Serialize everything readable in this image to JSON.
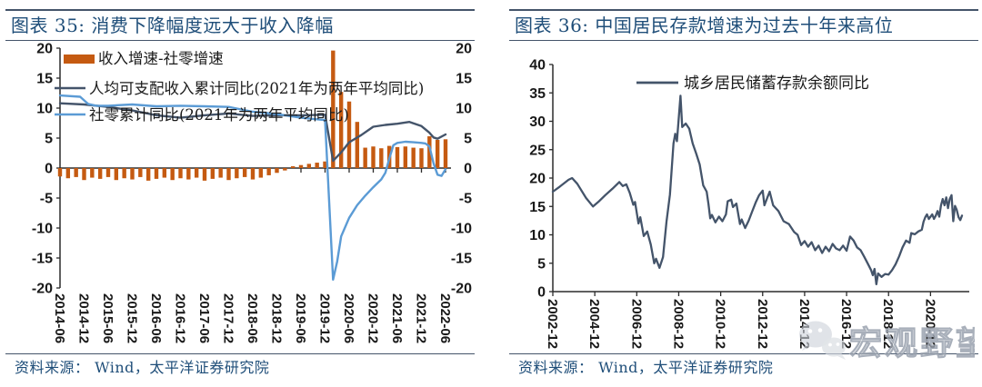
{
  "panels": [
    {
      "title": "图表 35:  消费下降幅度远大于收入降幅",
      "source": "资料来源：  Wind，太平洋证券研究院"
    },
    {
      "title": "图表 36:  中国居民存款增速为过去十年来高位",
      "source": "资料来源：  Wind，太平洋证券研究院"
    }
  ],
  "watermark": {
    "text": "宏观野望",
    "icon": "wechat-icon"
  },
  "colors": {
    "bar_orange": "#C55A11",
    "navy": "#44546A",
    "light_blue": "#5B9BD5",
    "title_blue": "#1F4E79",
    "rule": "#44546A",
    "axis": "#2b2b2b",
    "watermark_gray": "#9aa2ae"
  },
  "chart_data": [
    {
      "type": "bar",
      "subtype": "combo-bar-line-dual-axis",
      "title": "图表 35:  消费下降幅度远大于收入降幅",
      "ylim": [
        -20,
        20
      ],
      "ytick_step": 5,
      "dual_axis_labels": true,
      "x_domain_months": [
        0,
        96
      ],
      "x_tick_months": [
        0,
        6,
        12,
        18,
        24,
        30,
        36,
        42,
        48,
        54,
        60,
        66,
        72,
        78,
        84,
        90,
        96
      ],
      "x_tick_labels": [
        "2014-06",
        "2014-12",
        "2015-06",
        "2015-12",
        "2016-06",
        "2016-12",
        "2017-06",
        "2017-12",
        "2018-06",
        "2018-12",
        "2019-06",
        "2019-12",
        "2020-06",
        "2020-12",
        "2021-06",
        "2021-12",
        "2022-06"
      ],
      "series": [
        {
          "name": "收入增速-社零增速",
          "type": "bar",
          "color_key": "bar_orange",
          "points": [
            [
              0,
              -1.4
            ],
            [
              2,
              -1.7
            ],
            [
              4,
              -1.5
            ],
            [
              6,
              -2.0
            ],
            [
              8,
              -1.6
            ],
            [
              10,
              -1.8
            ],
            [
              12,
              -1.5
            ],
            [
              14,
              -2.0
            ],
            [
              16,
              -1.7
            ],
            [
              18,
              -1.9
            ],
            [
              20,
              -1.5
            ],
            [
              22,
              -2.1
            ],
            [
              24,
              -1.8
            ],
            [
              26,
              -1.6
            ],
            [
              28,
              -2.0
            ],
            [
              30,
              -1.7
            ],
            [
              32,
              -1.9
            ],
            [
              34,
              -1.6
            ],
            [
              36,
              -2.1
            ],
            [
              38,
              -1.8
            ],
            [
              40,
              -1.6
            ],
            [
              42,
              -2.0
            ],
            [
              44,
              -1.7
            ],
            [
              46,
              -1.5
            ],
            [
              48,
              -1.9
            ],
            [
              50,
              -1.6
            ],
            [
              52,
              -1.2
            ],
            [
              54,
              -0.8
            ],
            [
              56,
              -0.4
            ],
            [
              58,
              0.3
            ],
            [
              60,
              0.5
            ],
            [
              62,
              0.7
            ],
            [
              64,
              0.9
            ],
            [
              66,
              1.1
            ],
            [
              68,
              19.6
            ],
            [
              70,
              12.7
            ],
            [
              72,
              11.1
            ],
            [
              74,
              7.7
            ],
            [
              76,
              3.4
            ],
            [
              78,
              3.6
            ],
            [
              80,
              3.3
            ],
            [
              82,
              3.7
            ],
            [
              84,
              3.5
            ],
            [
              86,
              3.6
            ],
            [
              88,
              3.4
            ],
            [
              90,
              3.3
            ],
            [
              92,
              5.3
            ],
            [
              94,
              4.7
            ],
            [
              96,
              4.8
            ]
          ]
        },
        {
          "name": "人均可支配收入累计同比(2021年为两年平均同比)",
          "type": "line",
          "color_key": "navy",
          "points": [
            [
              0,
              10.8
            ],
            [
              6,
              10.6
            ],
            [
              12,
              10.2
            ],
            [
              18,
              9.6
            ],
            [
              24,
              8.8
            ],
            [
              30,
              8.4
            ],
            [
              36,
              8.8
            ],
            [
              42,
              9.1
            ],
            [
              48,
              8.7
            ],
            [
              54,
              8.8
            ],
            [
              60,
              8.8
            ],
            [
              66,
              8.9
            ],
            [
              68,
              1.2
            ],
            [
              70,
              2.6
            ],
            [
              72,
              4.3
            ],
            [
              75,
              5.5
            ],
            [
              78,
              6.9
            ],
            [
              81,
              7.2
            ],
            [
              84,
              7.4
            ],
            [
              87,
              7.7
            ],
            [
              90,
              7.0
            ],
            [
              92,
              5.9
            ],
            [
              93,
              5.1
            ],
            [
              94,
              4.9
            ],
            [
              96,
              5.6
            ]
          ]
        },
        {
          "name": "社零累计同比(2021年为两年平均同比)",
          "type": "line",
          "color_key": "light_blue",
          "points": [
            [
              0,
              12.1
            ],
            [
              5,
              11.9
            ],
            [
              7,
              10.7
            ],
            [
              9,
              10.4
            ],
            [
              12,
              10.4
            ],
            [
              18,
              10.6
            ],
            [
              24,
              10.3
            ],
            [
              30,
              10.4
            ],
            [
              36,
              10.3
            ],
            [
              42,
              10.2
            ],
            [
              48,
              9.4
            ],
            [
              54,
              9.0
            ],
            [
              60,
              8.4
            ],
            [
              66,
              8.0
            ],
            [
              68,
              -18.6
            ],
            [
              69,
              -15.6
            ],
            [
              70,
              -11.4
            ],
            [
              72,
              -8.3
            ],
            [
              74,
              -6.2
            ],
            [
              76,
              -4.6
            ],
            [
              78,
              -3.2
            ],
            [
              80,
              -1.9
            ],
            [
              81,
              -0.8
            ],
            [
              82,
              1.6
            ],
            [
              83,
              3.8
            ],
            [
              84,
              4.2
            ],
            [
              86,
              4.4
            ],
            [
              88,
              4.3
            ],
            [
              90,
              4.2
            ],
            [
              91,
              4.1
            ],
            [
              92,
              3.6
            ],
            [
              93,
              0.8
            ],
            [
              94,
              -1.1
            ],
            [
              95,
              -1.3
            ],
            [
              96,
              -0.2
            ]
          ]
        }
      ]
    },
    {
      "type": "line",
      "title": "图表 36:  中国居民存款增速为过去十年来高位",
      "legend": "城乡居民储蓄存款余额同比",
      "ylim": [
        0,
        40
      ],
      "ytick_step": 5,
      "x_domain_months": [
        0,
        234
      ],
      "x_tick_months": [
        0,
        24,
        48,
        72,
        96,
        120,
        144,
        168,
        192,
        216
      ],
      "x_tick_labels": [
        "2002-12",
        "2004-12",
        "2006-12",
        "2008-12",
        "2010-12",
        "2012-12",
        "2014-12",
        "2016-12",
        "2018-12",
        "2020-12"
      ],
      "series": [
        {
          "name": "城乡居民储蓄存款余额同比",
          "type": "line",
          "color_key": "navy",
          "points": [
            [
              0,
              17.6
            ],
            [
              4,
              18.5
            ],
            [
              9,
              19.7
            ],
            [
              11,
              20.0
            ],
            [
              14,
              19.0
            ],
            [
              19,
              16.5
            ],
            [
              23,
              15.0
            ],
            [
              26,
              15.8
            ],
            [
              30,
              17.0
            ],
            [
              34,
              18.1
            ],
            [
              38,
              19.3
            ],
            [
              40,
              18.6
            ],
            [
              42,
              18.9
            ],
            [
              44,
              17.4
            ],
            [
              46,
              15.3
            ],
            [
              47,
              15.8
            ],
            [
              49,
              12.0
            ],
            [
              50,
              13.1
            ],
            [
              52,
              9.8
            ],
            [
              54,
              10.6
            ],
            [
              56,
              8.3
            ],
            [
              58,
              5.0
            ],
            [
              59,
              5.8
            ],
            [
              61,
              4.2
            ],
            [
              63,
              6.1
            ],
            [
              65,
              12.3
            ],
            [
              67,
              17.1
            ],
            [
              69,
              26.1
            ],
            [
              70,
              27.8
            ],
            [
              71,
              26.5
            ],
            [
              73,
              34.5
            ],
            [
              74,
              29.0
            ],
            [
              76,
              29.6
            ],
            [
              78,
              28.7
            ],
            [
              80,
              26.1
            ],
            [
              82,
              24.3
            ],
            [
              84,
              22.4
            ],
            [
              86,
              18.7
            ],
            [
              88,
              17.6
            ],
            [
              89,
              15.4
            ],
            [
              90,
              12.9
            ],
            [
              91,
              13.5
            ],
            [
              93,
              12.2
            ],
            [
              95,
              13.2
            ],
            [
              97,
              12.4
            ],
            [
              99,
              13.6
            ],
            [
              100,
              15.9
            ],
            [
              102,
              16.2
            ],
            [
              103,
              14.9
            ],
            [
              105,
              15.5
            ],
            [
              107,
              11.9
            ],
            [
              108,
              12.7
            ],
            [
              110,
              11.2
            ],
            [
              112,
              12.5
            ],
            [
              114,
              14.1
            ],
            [
              116,
              15.7
            ],
            [
              118,
              17.0
            ],
            [
              120,
              17.8
            ],
            [
              121,
              15.2
            ],
            [
              123,
              16.8
            ],
            [
              124,
              17.6
            ],
            [
              126,
              15.2
            ],
            [
              129,
              14.2
            ],
            [
              132,
              12.4
            ],
            [
              135,
              11.9
            ],
            [
              138,
              10.5
            ],
            [
              140,
              10.0
            ],
            [
              142,
              8.2
            ],
            [
              144,
              8.9
            ],
            [
              146,
              7.9
            ],
            [
              148,
              8.7
            ],
            [
              150,
              7.3
            ],
            [
              152,
              8.1
            ],
            [
              154,
              6.8
            ],
            [
              156,
              7.9
            ],
            [
              158,
              7.1
            ],
            [
              160,
              8.4
            ],
            [
              162,
              7.6
            ],
            [
              164,
              7.3
            ],
            [
              166,
              8.1
            ],
            [
              168,
              7.2
            ],
            [
              170,
              9.7
            ],
            [
              172,
              9.0
            ],
            [
              174,
              7.8
            ],
            [
              176,
              7.3
            ],
            [
              178,
              6.2
            ],
            [
              180,
              5.0
            ],
            [
              182,
              3.8
            ],
            [
              183,
              2.9
            ],
            [
              184,
              4.0
            ],
            [
              185,
              1.3
            ],
            [
              186,
              3.2
            ],
            [
              188,
              2.6
            ],
            [
              190,
              3.1
            ],
            [
              192,
              3.0
            ],
            [
              194,
              3.8
            ],
            [
              196,
              4.8
            ],
            [
              198,
              6.2
            ],
            [
              200,
              7.8
            ],
            [
              202,
              9.0
            ],
            [
              204,
              8.6
            ],
            [
              205,
              10.3
            ],
            [
              207,
              10.1
            ],
            [
              209,
              10.6
            ],
            [
              211,
              10.9
            ],
            [
              212,
              12.3
            ],
            [
              213,
              13.1
            ],
            [
              214,
              13.6
            ],
            [
              215,
              12.8
            ],
            [
              216,
              13.2
            ],
            [
              217,
              13.6
            ],
            [
              218,
              12.8
            ],
            [
              219,
              13.4
            ],
            [
              220,
              14.2
            ],
            [
              221,
              13.2
            ],
            [
              222,
              15.2
            ],
            [
              223,
              16.3
            ],
            [
              224,
              15.2
            ],
            [
              225,
              16.6
            ],
            [
              226,
              14.7
            ],
            [
              227,
              16.3
            ],
            [
              228,
              17.0
            ],
            [
              229,
              12.4
            ],
            [
              230,
              15.1
            ],
            [
              231,
              14.4
            ],
            [
              232,
              13.1
            ],
            [
              233,
              12.6
            ],
            [
              234,
              13.4
            ]
          ]
        }
      ]
    }
  ]
}
